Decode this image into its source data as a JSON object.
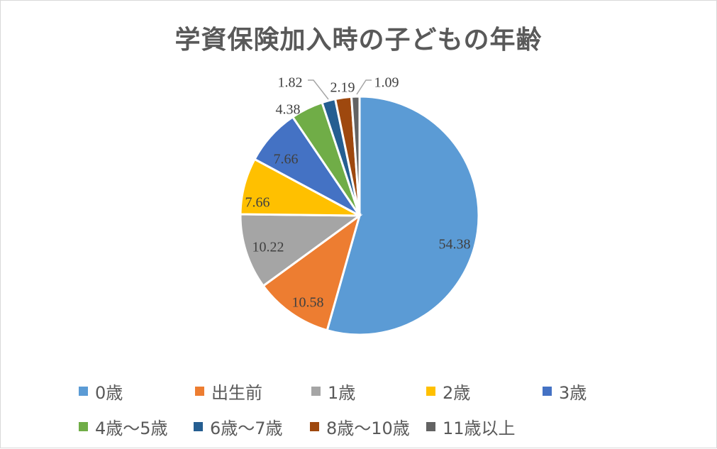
{
  "chart_data": {
    "type": "pie",
    "title": "学資保険加入時の子どもの年齢",
    "categories": [
      "0歳",
      "出生前",
      "1歳",
      "2歳",
      "3歳",
      "4歳〜5歳",
      "6歳〜7歳",
      "8歳〜10歳",
      "11歳以上"
    ],
    "values": [
      54.38,
      10.58,
      10.22,
      7.66,
      7.66,
      4.38,
      1.82,
      2.19,
      1.09
    ],
    "value_labels": [
      "54.38",
      "10.58",
      "10.22",
      "7.66",
      "7.66",
      "4.38",
      "1.82",
      "2.19",
      "1.09"
    ],
    "colors": [
      "#5b9bd5",
      "#ed7d31",
      "#a5a5a5",
      "#ffc000",
      "#4472c4",
      "#70ad47",
      "#255e91",
      "#9e480e",
      "#636363"
    ],
    "start_angle_deg": 0,
    "direction": "clockwise",
    "legend_position": "bottom",
    "units": "%"
  },
  "title": "学資保険加入時の子どもの年齢",
  "legend": [
    {
      "label": "0歳",
      "color": "#5b9bd5"
    },
    {
      "label": "出生前",
      "color": "#ed7d31"
    },
    {
      "label": "1歳",
      "color": "#a5a5a5"
    },
    {
      "label": "2歳",
      "color": "#ffc000"
    },
    {
      "label": "3歳",
      "color": "#4472c4"
    },
    {
      "label": "4歳〜5歳",
      "color": "#70ad47"
    },
    {
      "label": "6歳〜7歳",
      "color": "#255e91"
    },
    {
      "label": "8歳〜10歳",
      "color": "#9e480e"
    },
    {
      "label": "11歳以上",
      "color": "#636363"
    }
  ]
}
